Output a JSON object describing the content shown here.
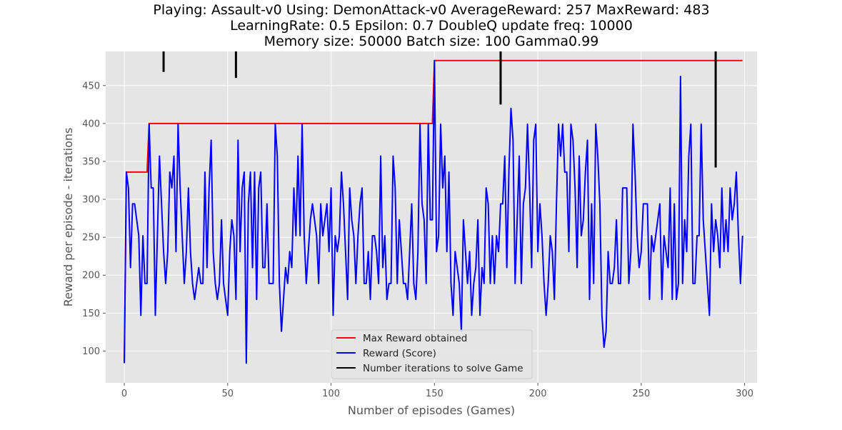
{
  "chart_data": {
    "type": "line",
    "title_lines": [
      "Playing: Assault-v0 Using: DemonAttack-v0 AverageReward: 257 MaxReward: 483",
      "LearningRate: 0.5 Epsilon: 0.7 DoubleQ update freq: 10000",
      "Memory size: 50000 Batch size: 100 Gamma0.99"
    ],
    "xlabel": "Number of episodes (Games)",
    "ylabel": "Reward per episode - iterations",
    "xlim": [
      -9,
      306
    ],
    "ylim": [
      58,
      495
    ],
    "x_ticks": [
      0,
      50,
      100,
      150,
      200,
      250,
      300
    ],
    "y_ticks": [
      100,
      150,
      200,
      250,
      300,
      350,
      400,
      450
    ],
    "grid": true,
    "legend_position": "bottom-center",
    "colors": {
      "background": "#e5e5e5",
      "grid": "#ffffff",
      "max_reward": "#ff0000",
      "reward": "#0000ff",
      "iterations": "#000000"
    },
    "series": [
      {
        "name": "Max Reward obtained",
        "key": "max_reward",
        "points": [
          [
            0,
            84
          ],
          [
            1,
            336
          ],
          [
            11,
            336
          ],
          [
            12,
            400
          ],
          [
            149,
            400
          ],
          [
            150,
            483
          ],
          [
            299,
            483
          ]
        ]
      },
      {
        "name": "Reward (Score)",
        "key": "reward",
        "values": [
          84,
          336,
          315,
          210,
          294,
          294,
          273,
          252,
          147,
          252,
          189,
          189,
          399,
          315,
          315,
          147,
          252,
          357,
          294,
          231,
          189,
          231,
          336,
          315,
          357,
          231,
          399,
          315,
          252,
          189,
          231,
          315,
          231,
          189,
          168,
          189,
          210,
          189,
          189,
          336,
          210,
          315,
          378,
          231,
          189,
          168,
          189,
          273,
          189,
          168,
          147,
          231,
          273,
          252,
          168,
          378,
          231,
          315,
          336,
          84,
          294,
          336,
          210,
          336,
          168,
          315,
          336,
          210,
          210,
          294,
          189,
          189,
          189,
          399,
          357,
          189,
          126,
          168,
          210,
          189,
          231,
          210,
          315,
          252,
          357,
          252,
          399,
          252,
          189,
          231,
          273,
          294,
          273,
          252,
          189,
          294,
          252,
          273,
          294,
          231,
          315,
          147,
          252,
          231,
          252,
          336,
          294,
          231,
          168,
          315,
          273,
          252,
          189,
          252,
          294,
          315,
          189,
          189,
          231,
          168,
          252,
          252,
          231,
          189,
          357,
          210,
          252,
          168,
          189,
          189,
          357,
          315,
          189,
          273,
          231,
          189,
          189,
          168,
          231,
          294,
          189,
          168,
          231,
          399,
          294,
          273,
          189,
          399,
          273,
          273,
          483,
          231,
          252,
          399,
          315,
          357,
          231,
          336,
          189,
          147,
          231,
          210,
          189,
          126,
          273,
          231,
          189,
          231,
          147,
          189,
          210,
          273,
          147,
          210,
          189,
          315,
          294,
          189,
          252,
          189,
          252,
          231,
          294,
          294,
          357,
          210,
          336,
          420,
          378,
          189,
          273,
          357,
          189,
          294,
          315,
          399,
          315,
          210,
          378,
          399,
          231,
          294,
          252,
          189,
          147,
          189,
          252,
          231,
          168,
          294,
          399,
          357,
          399,
          336,
          336,
          231,
          399,
          378,
          315,
          210,
          357,
          252,
          273,
          336,
          378,
          168,
          294,
          189,
          399,
          357,
          294,
          147,
          105,
          126,
          231,
          189,
          189,
          210,
          273,
          189,
          189,
          315,
          315,
          315,
          189,
          231,
          399,
          336,
          252,
          210,
          231,
          294,
          294,
          294,
          168,
          252,
          231,
          252,
          273,
          294,
          168,
          252,
          231,
          210,
          315,
          168,
          294,
          168,
          189,
          462,
          189,
          273,
          231,
          357,
          399,
          189,
          189,
          252,
          252,
          399,
          273,
          231,
          189,
          147,
          294,
          231,
          273,
          252,
          210,
          315,
          231,
          273,
          231,
          315,
          273,
          294,
          336,
          252,
          189,
          252
        ]
      },
      {
        "name": "Number iterations to solve Game",
        "key": "iterations",
        "segments": [
          {
            "x": 19,
            "y_low": 468,
            "y_high": 495
          },
          {
            "x": 54,
            "y_low": 460,
            "y_high": 495
          },
          {
            "x": 182,
            "y_low": 425,
            "y_high": 495
          },
          {
            "x": 286,
            "y_low": 342,
            "y_high": 495
          }
        ]
      }
    ]
  }
}
